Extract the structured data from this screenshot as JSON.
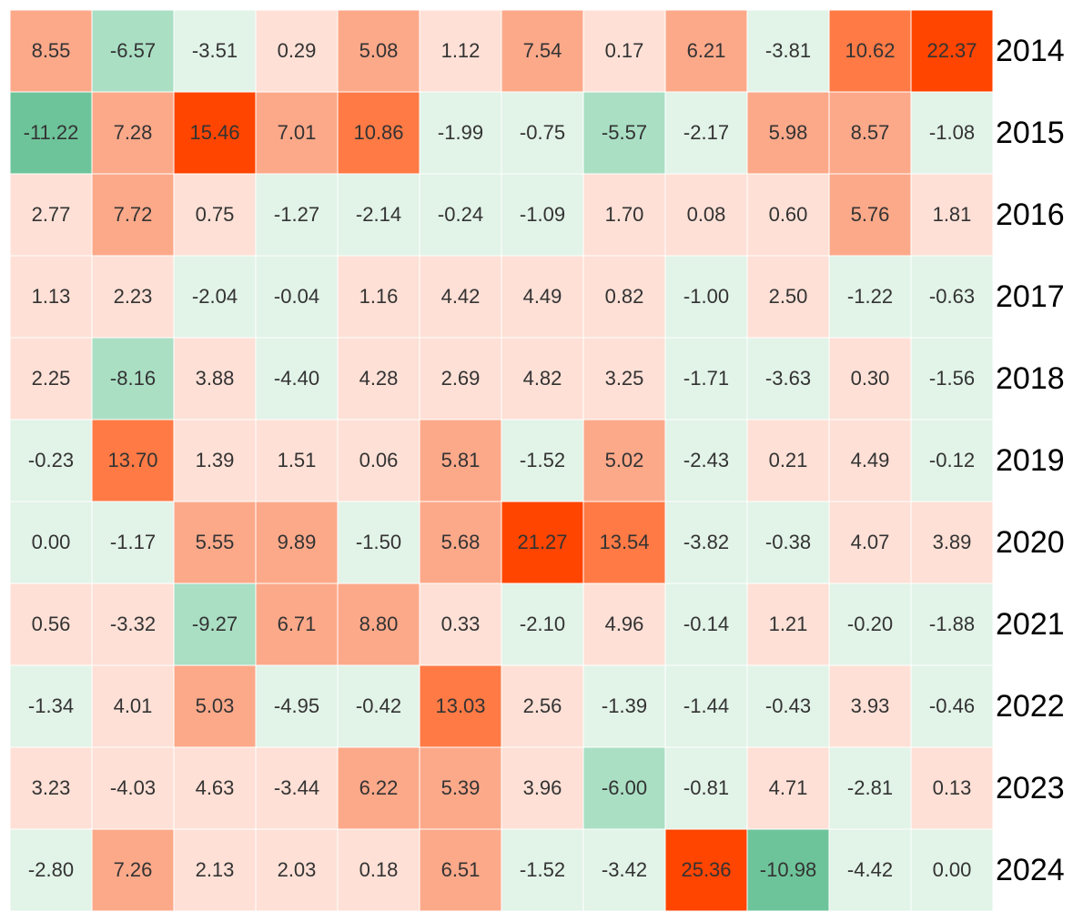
{
  "chart_data": {
    "type": "heatmap",
    "rows": [
      "2014",
      "2015",
      "2016",
      "2017",
      "2018",
      "2019",
      "2020",
      "2021",
      "2022",
      "2023",
      "2024"
    ],
    "values": [
      [
        8.55,
        -6.57,
        -3.51,
        0.29,
        5.08,
        1.12,
        7.54,
        0.17,
        6.21,
        -3.81,
        10.62,
        22.37
      ],
      [
        -11.22,
        7.28,
        15.46,
        7.01,
        10.86,
        -1.99,
        -0.75,
        -5.57,
        -2.17,
        5.98,
        8.57,
        -1.08
      ],
      [
        2.77,
        7.72,
        0.75,
        -1.27,
        -2.14,
        -0.24,
        -1.09,
        1.7,
        0.08,
        0.6,
        5.76,
        1.81
      ],
      [
        1.13,
        2.23,
        -2.04,
        -0.04,
        1.16,
        4.42,
        4.49,
        0.82,
        -1,
        2.5,
        -1.22,
        -0.63
      ],
      [
        2.25,
        -8.16,
        3.88,
        -4.4,
        4.28,
        2.69,
        4.82,
        3.25,
        -1.71,
        -3.63,
        0.3,
        -1.56
      ],
      [
        -0.23,
        13.7,
        1.39,
        1.51,
        0.06,
        5.81,
        -1.52,
        5.02,
        -2.43,
        0.21,
        4.49,
        -0.12
      ],
      [
        0,
        -1.17,
        5.55,
        9.89,
        -1.5,
        5.68,
        21.27,
        13.54,
        -3.82,
        -0.38,
        4.07,
        3.89
      ],
      [
        0.56,
        -3.32,
        -9.27,
        6.71,
        8.8,
        0.33,
        -2.1,
        4.96,
        -0.14,
        1.21,
        -0.2,
        -1.88
      ],
      [
        -1.34,
        4.01,
        5.03,
        -4.95,
        -0.42,
        13.03,
        2.56,
        -1.39,
        -1.44,
        -0.43,
        3.93,
        -0.46
      ],
      [
        3.23,
        -4.03,
        4.63,
        -3.44,
        6.22,
        5.39,
        3.96,
        -6,
        -0.81,
        4.71,
        -2.81,
        0.13
      ],
      [
        -2.8,
        7.26,
        2.13,
        2.03,
        0.18,
        6.51,
        -1.52,
        -3.42,
        25.36,
        -10.98,
        -4.42,
        0
      ]
    ],
    "value_labels": [
      [
        "8.55",
        "-6.57",
        "-3.51",
        "0.29",
        "5.08",
        "1.12",
        "7.54",
        "0.17",
        "6.21",
        "-3.81",
        "10.62",
        "22.37"
      ],
      [
        "-11.22",
        "7.28",
        "15.46",
        "7.01",
        "10.86",
        "-1.99",
        "-0.75",
        "-5.57",
        "-2.17",
        "5.98",
        "8.57",
        "-1.08"
      ],
      [
        "2.77",
        "7.72",
        "0.75",
        "-1.27",
        "-2.14",
        "-0.24",
        "-1.09",
        "1.70",
        "0.08",
        "0.60",
        "5.76",
        "1.81"
      ],
      [
        "1.13",
        "2.23",
        "-2.04",
        "-0.04",
        "1.16",
        "4.42",
        "4.49",
        "0.82",
        "-1.00",
        "2.50",
        "-1.22",
        "-0.63"
      ],
      [
        "2.25",
        "-8.16",
        "3.88",
        "-4.40",
        "4.28",
        "2.69",
        "4.82",
        "3.25",
        "-1.71",
        "-3.63",
        "0.30",
        "-1.56"
      ],
      [
        "-0.23",
        "13.70",
        "1.39",
        "1.51",
        "0.06",
        "5.81",
        "-1.52",
        "5.02",
        "-2.43",
        "0.21",
        "4.49",
        "-0.12"
      ],
      [
        "0.00",
        "-1.17",
        "5.55",
        "9.89",
        "-1.50",
        "5.68",
        "21.27",
        "13.54",
        "-3.82",
        "-0.38",
        "4.07",
        "3.89"
      ],
      [
        "0.56",
        "-3.32",
        "-9.27",
        "6.71",
        "8.80",
        "0.33",
        "-2.10",
        "4.96",
        "-0.14",
        "1.21",
        "-0.20",
        "-1.88"
      ],
      [
        "-1.34",
        "4.01",
        "5.03",
        "-4.95",
        "-0.42",
        "13.03",
        "2.56",
        "-1.39",
        "-1.44",
        "-0.43",
        "3.93",
        "-0.46"
      ],
      [
        "3.23",
        "-4.03",
        "4.63",
        "-3.44",
        "6.22",
        "5.39",
        "3.96",
        "-6.00",
        "-0.81",
        "4.71",
        "-2.81",
        "0.13"
      ],
      [
        "-2.80",
        "7.26",
        "2.13",
        "2.03",
        "0.18",
        "6.51",
        "-1.52",
        "-3.42",
        "25.36",
        "-10.98",
        "-4.42",
        "0.00"
      ]
    ],
    "colors": [
      [
        "#fca98a",
        "#aadfc4",
        "#e2f3e8",
        "#fee0d6",
        "#fca98a",
        "#fee0d6",
        "#fca98a",
        "#fee0d6",
        "#fca98a",
        "#e2f3e8",
        "#ff7a45",
        "#ff4500"
      ],
      [
        "#6ec49a",
        "#fca98a",
        "#ff4500",
        "#fca98a",
        "#ff7a45",
        "#e2f3e8",
        "#e2f3e8",
        "#aadfc4",
        "#e2f3e8",
        "#fca98a",
        "#fca98a",
        "#e2f3e8"
      ],
      [
        "#fee0d6",
        "#fca98a",
        "#fee0d6",
        "#e2f3e8",
        "#e2f3e8",
        "#e2f3e8",
        "#e2f3e8",
        "#fee0d6",
        "#fee0d6",
        "#fee0d6",
        "#fca98a",
        "#fee0d6"
      ],
      [
        "#fee0d6",
        "#fee0d6",
        "#e2f3e8",
        "#e2f3e8",
        "#fee0d6",
        "#fee0d6",
        "#fee0d6",
        "#fee0d6",
        "#e2f3e8",
        "#fee0d6",
        "#e2f3e8",
        "#e2f3e8"
      ],
      [
        "#fee0d6",
        "#aadfc4",
        "#fee0d6",
        "#e2f3e8",
        "#fee0d6",
        "#fee0d6",
        "#fee0d6",
        "#fee0d6",
        "#e2f3e8",
        "#e2f3e8",
        "#fee0d6",
        "#e2f3e8"
      ],
      [
        "#e2f3e8",
        "#ff7a45",
        "#fee0d6",
        "#fee0d6",
        "#fee0d6",
        "#fca98a",
        "#e2f3e8",
        "#fca98a",
        "#e2f3e8",
        "#fee0d6",
        "#fee0d6",
        "#e2f3e8"
      ],
      [
        "#e2f3e8",
        "#e2f3e8",
        "#fca98a",
        "#fca98a",
        "#e2f3e8",
        "#fca98a",
        "#ff4500",
        "#ff7a45",
        "#e2f3e8",
        "#e2f3e8",
        "#fee0d6",
        "#fee0d6"
      ],
      [
        "#fee0d6",
        "#fee0d6",
        "#aadfc4",
        "#fca98a",
        "#fca98a",
        "#fee0d6",
        "#e2f3e8",
        "#fee0d6",
        "#e2f3e8",
        "#fee0d6",
        "#e2f3e8",
        "#e2f3e8"
      ],
      [
        "#e2f3e8",
        "#fee0d6",
        "#fca98a",
        "#e2f3e8",
        "#e2f3e8",
        "#ff7a45",
        "#fee0d6",
        "#e2f3e8",
        "#e2f3e8",
        "#e2f3e8",
        "#fee0d6",
        "#e2f3e8"
      ],
      [
        "#fee0d6",
        "#fee0d6",
        "#fee0d6",
        "#fee0d6",
        "#fca98a",
        "#fca98a",
        "#fee0d6",
        "#aadfc4",
        "#e2f3e8",
        "#fee0d6",
        "#e2f3e8",
        "#fee0d6"
      ],
      [
        "#e2f3e8",
        "#fca98a",
        "#fee0d6",
        "#fee0d6",
        "#fee0d6",
        "#fca98a",
        "#e2f3e8",
        "#e2f3e8",
        "#ff4500",
        "#6ec49a",
        "#e2f3e8",
        "#e2f3e8"
      ]
    ]
  }
}
